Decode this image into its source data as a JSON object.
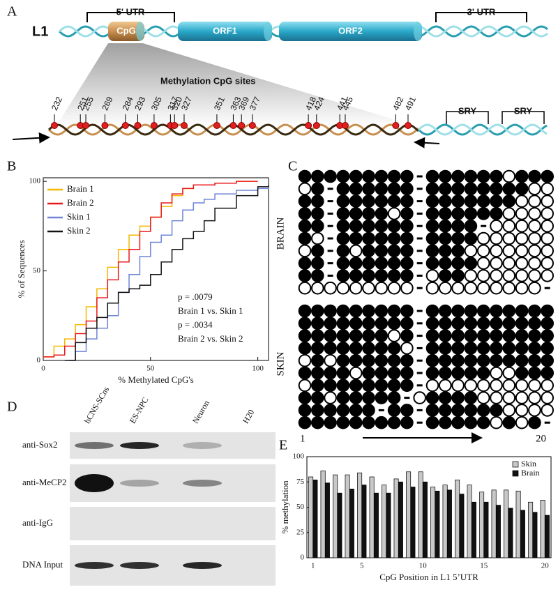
{
  "panel_labels": [
    "A",
    "B",
    "C",
    "D",
    "E"
  ],
  "diagram": {
    "element": "L1",
    "utr5": "5' UTR",
    "utr3": "3' UTR",
    "cpg": "CpG",
    "orf1": "ORF1",
    "orf2": "ORF2",
    "sites_title": "Methylation CpG sites",
    "sites": [
      232,
      251,
      255,
      269,
      284,
      293,
      305,
      317,
      320,
      327,
      351,
      363,
      369,
      377,
      418,
      424,
      441,
      445,
      482,
      491
    ],
    "sry": [
      "SRY",
      "SRY"
    ]
  },
  "chart_data": [
    {
      "type": "line",
      "step": true,
      "xlabel": "% Methylated CpG's",
      "ylabel": "% of Sequences",
      "xlim": [
        0,
        105
      ],
      "ylim": [
        0,
        102
      ],
      "xticks": [
        0,
        50,
        100
      ],
      "yticks": [
        0,
        50,
        100
      ],
      "annotations": [
        "p = .0079",
        "Brain 1 vs. Skin 1",
        "p = .0034",
        "Brain 2 vs. Skin 2"
      ],
      "series": [
        {
          "name": "Brain 1",
          "color": "#f5b800",
          "x": [
            0,
            5,
            10,
            15,
            20,
            25,
            30,
            35,
            40,
            45,
            50,
            55,
            60,
            65,
            70,
            80,
            90,
            100
          ],
          "values": [
            2,
            8,
            12,
            20,
            30,
            40,
            52,
            62,
            70,
            75,
            80,
            86,
            92,
            96,
            98,
            99,
            100,
            100
          ]
        },
        {
          "name": "Brain 2",
          "color": "#e8191e",
          "x": [
            0,
            5,
            10,
            15,
            20,
            25,
            30,
            35,
            40,
            45,
            50,
            55,
            60,
            65,
            70,
            80,
            90,
            100
          ],
          "values": [
            2,
            3,
            8,
            15,
            22,
            35,
            45,
            55,
            62,
            72,
            80,
            88,
            93,
            96,
            98,
            99,
            100,
            100
          ]
        },
        {
          "name": "Skin 1",
          "color": "#6f84d6",
          "x": [
            12,
            15,
            20,
            25,
            30,
            35,
            40,
            45,
            50,
            55,
            60,
            65,
            70,
            75,
            80,
            90,
            100,
            105
          ],
          "values": [
            0,
            5,
            12,
            18,
            25,
            38,
            48,
            58,
            66,
            70,
            78,
            84,
            88,
            90,
            93,
            95,
            96,
            97
          ]
        },
        {
          "name": "Skin 2",
          "color": "#111111",
          "x": [
            10,
            15,
            20,
            25,
            30,
            35,
            40,
            45,
            50,
            55,
            60,
            65,
            70,
            75,
            80,
            90,
            100,
            105
          ],
          "values": [
            0,
            10,
            18,
            24,
            32,
            38,
            40,
            42,
            48,
            55,
            62,
            68,
            72,
            78,
            85,
            92,
            97,
            98
          ]
        }
      ]
    },
    {
      "type": "bar",
      "xlabel": "CpG Position in L1 5’UTR",
      "ylabel": "% methylation",
      "x": [
        1,
        2,
        3,
        4,
        5,
        6,
        7,
        8,
        9,
        10,
        11,
        12,
        13,
        14,
        15,
        16,
        17,
        18,
        19,
        20
      ],
      "xlim": [
        0.5,
        20.5
      ],
      "xticks": [
        1,
        5,
        10,
        15,
        20
      ],
      "ylim": [
        0,
        100
      ],
      "yticks": [
        0,
        25,
        50,
        75,
        100
      ],
      "legend": "upper right",
      "series": [
        {
          "name": "Skin",
          "color": "#c8c8c8",
          "values": [
            80,
            86,
            82,
            82,
            84,
            80,
            72,
            78,
            85,
            85,
            70,
            72,
            77,
            72,
            65,
            67,
            67,
            66,
            55,
            57
          ]
        },
        {
          "name": "Brain",
          "color": "#111111",
          "values": [
            77,
            74,
            64,
            68,
            72,
            64,
            64,
            75,
            70,
            75,
            66,
            67,
            63,
            55,
            55,
            52,
            49,
            47,
            45,
            42
          ]
        }
      ]
    }
  ],
  "methylation": {
    "start_label": "1",
    "end_label": "20",
    "groups": [
      {
        "label": "BRAIN",
        "rows": [
          [
            1,
            1,
            1,
            1,
            1,
            1,
            1,
            1,
            1,
            null,
            1,
            1,
            1,
            1,
            1,
            1,
            0,
            1,
            1,
            1
          ],
          [
            0,
            1,
            null,
            1,
            1,
            1,
            1,
            1,
            1,
            null,
            1,
            1,
            1,
            1,
            1,
            1,
            1,
            1,
            0,
            0
          ],
          [
            1,
            1,
            null,
            1,
            1,
            1,
            1,
            1,
            1,
            null,
            1,
            1,
            1,
            1,
            1,
            1,
            1,
            0,
            0,
            0
          ],
          [
            1,
            1,
            null,
            1,
            1,
            1,
            1,
            0,
            1,
            null,
            1,
            1,
            1,
            1,
            1,
            1,
            0,
            0,
            0,
            0
          ],
          [
            1,
            1,
            null,
            1,
            1,
            1,
            1,
            1,
            1,
            null,
            1,
            1,
            1,
            1,
            null,
            0,
            0,
            0,
            0,
            0
          ],
          [
            1,
            0,
            null,
            1,
            1,
            1,
            1,
            1,
            1,
            null,
            1,
            1,
            1,
            1,
            0,
            0,
            0,
            0,
            0,
            0
          ],
          [
            0,
            1,
            null,
            1,
            0,
            1,
            1,
            1,
            1,
            null,
            1,
            1,
            1,
            0,
            0,
            0,
            0,
            0,
            0,
            0
          ],
          [
            1,
            1,
            null,
            1,
            1,
            1,
            1,
            1,
            1,
            null,
            1,
            1,
            1,
            1,
            0,
            0,
            0,
            0,
            0,
            0
          ],
          [
            1,
            1,
            null,
            1,
            1,
            1,
            1,
            1,
            1,
            null,
            0,
            1,
            1,
            0,
            0,
            0,
            0,
            0,
            0,
            0
          ],
          [
            0,
            0,
            0,
            0,
            0,
            0,
            0,
            0,
            0,
            null,
            0,
            0,
            0,
            0,
            0,
            0,
            0,
            0,
            0,
            null
          ]
        ]
      },
      {
        "label": "SKIN",
        "rows": [
          [
            1,
            1,
            1,
            1,
            1,
            1,
            1,
            1,
            1,
            null,
            1,
            1,
            1,
            1,
            1,
            1,
            1,
            1,
            1,
            1
          ],
          [
            1,
            1,
            1,
            1,
            1,
            1,
            1,
            1,
            1,
            null,
            1,
            1,
            1,
            1,
            1,
            1,
            1,
            1,
            1,
            1
          ],
          [
            1,
            1,
            1,
            1,
            1,
            1,
            1,
            0,
            1,
            null,
            1,
            1,
            1,
            1,
            1,
            1,
            1,
            1,
            1,
            1
          ],
          [
            1,
            1,
            1,
            1,
            1,
            1,
            1,
            1,
            0,
            null,
            1,
            1,
            1,
            1,
            1,
            1,
            1,
            1,
            1,
            1
          ],
          [
            0,
            1,
            0,
            1,
            1,
            1,
            1,
            1,
            1,
            null,
            1,
            1,
            1,
            1,
            1,
            1,
            1,
            1,
            1,
            1
          ],
          [
            1,
            1,
            1,
            1,
            0,
            1,
            1,
            1,
            1,
            null,
            1,
            1,
            1,
            1,
            1,
            0,
            0,
            1,
            1,
            1
          ],
          [
            0,
            1,
            1,
            1,
            1,
            1,
            1,
            1,
            1,
            null,
            0,
            0,
            0,
            0,
            0,
            0,
            0,
            0,
            0,
            0
          ],
          [
            1,
            1,
            0,
            1,
            1,
            1,
            1,
            1,
            null,
            0,
            1,
            1,
            1,
            1,
            0,
            0,
            0,
            0,
            0,
            0
          ],
          [
            1,
            1,
            1,
            1,
            1,
            1,
            null,
            1,
            1,
            null,
            1,
            1,
            1,
            1,
            1,
            1,
            0,
            0,
            0,
            0
          ],
          [
            1,
            1,
            1,
            1,
            1,
            1,
            1,
            1,
            1,
            null,
            1,
            1,
            1,
            1,
            1,
            0,
            1,
            0,
            1,
            null
          ]
        ]
      }
    ]
  },
  "gel": {
    "lanes": [
      "hCNS-SCns",
      "ES-NPC",
      "Neuron",
      "H20"
    ],
    "rows": [
      "anti-Sox2",
      "anti-MeCP2",
      "anti-IgG",
      "DNA Input"
    ]
  }
}
